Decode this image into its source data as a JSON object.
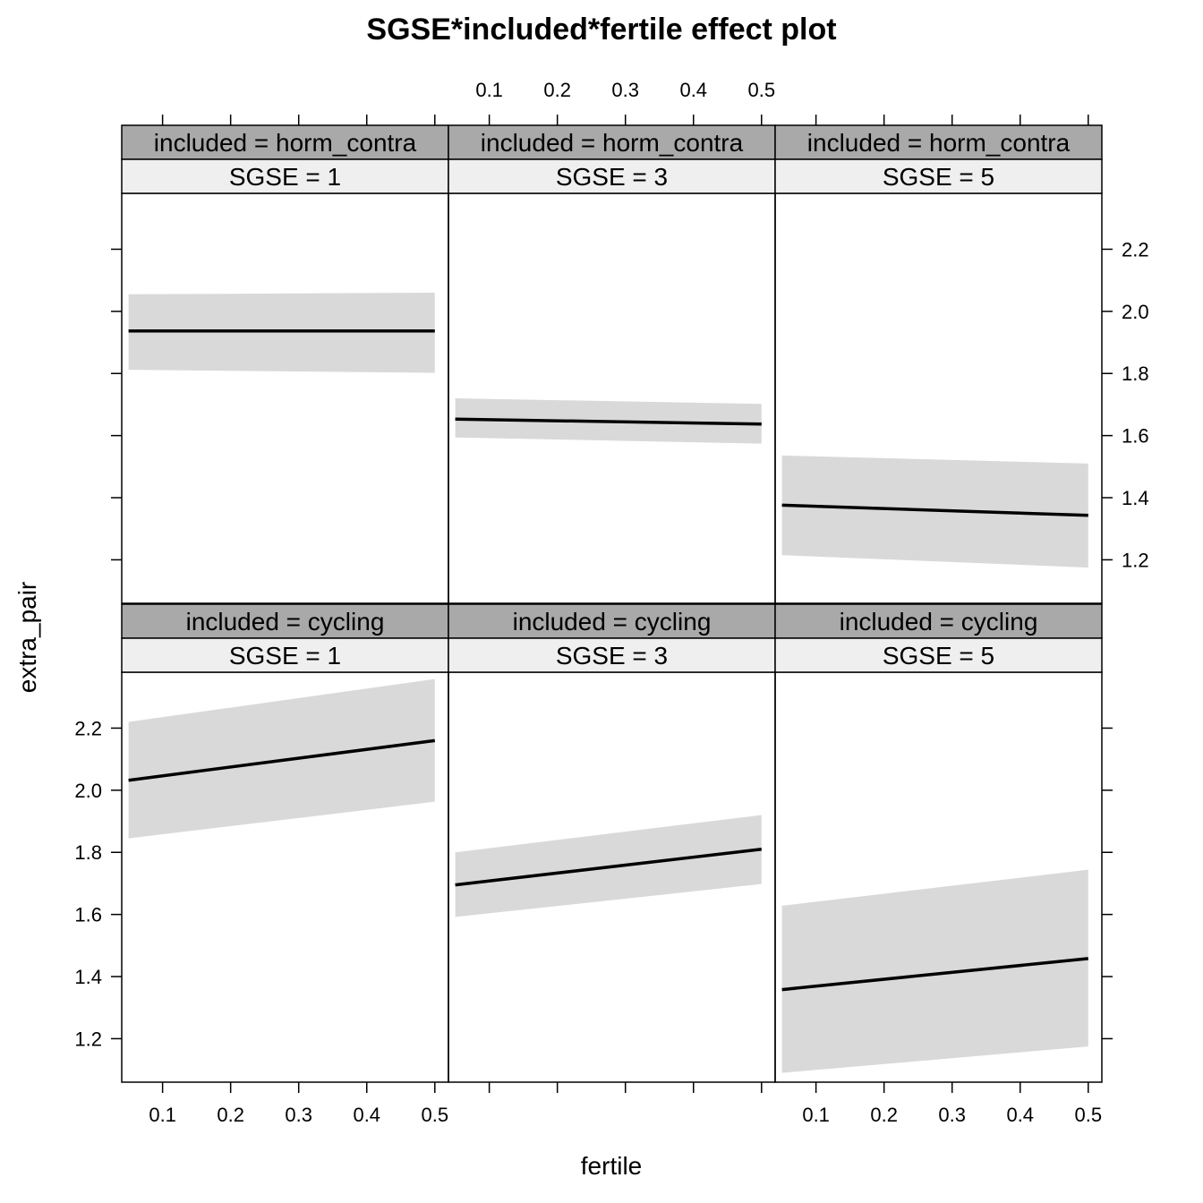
{
  "chart_data": {
    "type": "line",
    "title": "SGSE*included*fertile effect plot",
    "xlabel": "fertile",
    "ylabel": "extra_pair",
    "xlim": [
      0.04,
      0.52
    ],
    "ylim": [
      1.06,
      2.38
    ],
    "xticks": [
      0.1,
      0.2,
      0.3,
      0.4,
      0.5
    ],
    "xtick_labels": [
      "0.1",
      "0.2",
      "0.3",
      "0.4",
      "0.5"
    ],
    "yticks": [
      1.2,
      1.4,
      1.6,
      1.8,
      2.0,
      2.2
    ],
    "ytick_labels": [
      "1.2",
      "1.4",
      "1.6",
      "1.8",
      "2.0",
      "2.2"
    ],
    "grid": false,
    "legend": "none",
    "band_color": "#d9d9d9",
    "line_color": "#000000",
    "strip_outer_color": "#a9a9a9",
    "strip_inner_color": "#efefef",
    "panels": [
      {
        "row": 0,
        "col": 0,
        "strip_outer": "included = horm_contra",
        "strip_inner": "SGSE = 1",
        "x": [
          0.05,
          0.5
        ],
        "fit": [
          1.937,
          1.937
        ],
        "lower": [
          1.812,
          1.802
        ],
        "upper": [
          2.055,
          2.06
        ]
      },
      {
        "row": 0,
        "col": 1,
        "strip_outer": "included = horm_contra",
        "strip_inner": "SGSE = 3",
        "x": [
          0.05,
          0.5
        ],
        "fit": [
          1.653,
          1.637
        ],
        "lower": [
          1.594,
          1.574
        ],
        "upper": [
          1.72,
          1.702
        ]
      },
      {
        "row": 0,
        "col": 2,
        "strip_outer": "included = horm_contra",
        "strip_inner": "SGSE = 5",
        "x": [
          0.05,
          0.5
        ],
        "fit": [
          1.376,
          1.343
        ],
        "lower": [
          1.215,
          1.175
        ],
        "upper": [
          1.536,
          1.51
        ]
      },
      {
        "row": 1,
        "col": 0,
        "strip_outer": "included = cycling",
        "strip_inner": "SGSE = 1",
        "x": [
          0.05,
          0.5
        ],
        "fit": [
          2.032,
          2.16
        ],
        "lower": [
          1.845,
          1.963
        ],
        "upper": [
          2.22,
          2.358
        ]
      },
      {
        "row": 1,
        "col": 1,
        "strip_outer": "included = cycling",
        "strip_inner": "SGSE = 3",
        "x": [
          0.05,
          0.5
        ],
        "fit": [
          1.695,
          1.81
        ],
        "lower": [
          1.592,
          1.698
        ],
        "upper": [
          1.8,
          1.92
        ]
      },
      {
        "row": 1,
        "col": 2,
        "strip_outer": "included = cycling",
        "strip_inner": "SGSE = 5",
        "x": [
          0.05,
          0.5
        ],
        "fit": [
          1.358,
          1.458
        ],
        "lower": [
          1.09,
          1.175
        ],
        "upper": [
          1.628,
          1.744
        ]
      }
    ]
  }
}
